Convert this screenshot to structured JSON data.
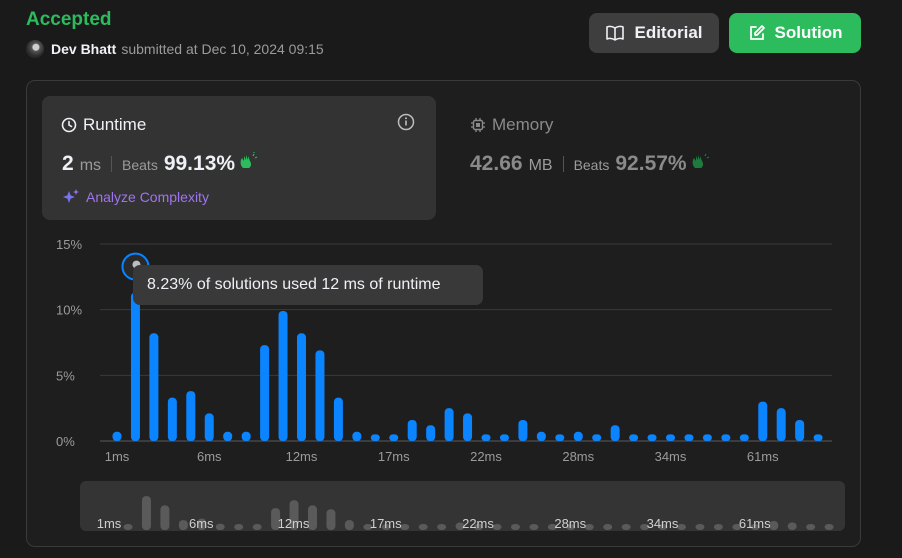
{
  "submission": {
    "status": "Accepted",
    "user": "Dev Bhatt",
    "submitted_text": "submitted at Dec 10, 2024 09:15"
  },
  "buttons": {
    "editorial": "Editorial",
    "solution": "Solution"
  },
  "runtime": {
    "title": "Runtime",
    "value": "2",
    "unit": "ms",
    "beats_label": "Beats",
    "beats_pct": "99.13%",
    "analyze_label": "Analyze Complexity"
  },
  "memory": {
    "title": "Memory",
    "value": "42.66",
    "unit": "MB",
    "beats_label": "Beats",
    "beats_pct": "92.57%"
  },
  "tooltip": "8.23% of solutions used 12 ms of runtime",
  "colors": {
    "accepted": "#2cbb5d",
    "bar": "#0a84ff",
    "analyze": "#a074f0"
  },
  "chart_data": {
    "type": "bar",
    "ylim": [
      0,
      15
    ],
    "y_ticks": [
      "15%",
      "10%",
      "5%",
      "0%"
    ],
    "x_tick_labels": [
      {
        "index": 0,
        "label": "1ms"
      },
      {
        "index": 5,
        "label": "6ms"
      },
      {
        "index": 10,
        "label": "12ms"
      },
      {
        "index": 15,
        "label": "17ms"
      },
      {
        "index": 20,
        "label": "22ms"
      },
      {
        "index": 25,
        "label": "28ms"
      },
      {
        "index": 30,
        "label": "34ms"
      },
      {
        "index": 35,
        "label": "61ms"
      }
    ],
    "values": [
      0.7,
      11.3,
      8.2,
      3.3,
      3.8,
      2.1,
      0.7,
      0.7,
      7.3,
      9.9,
      8.2,
      6.9,
      3.3,
      0.7,
      0.5,
      0.5,
      1.6,
      1.2,
      2.5,
      2.1,
      0.5,
      0.5,
      1.6,
      0.7,
      0.5,
      0.7,
      0.5,
      1.2,
      0.5,
      0.5,
      0.5,
      0.5,
      0.5,
      0.5,
      0.5,
      3.0,
      2.5,
      1.6,
      0.5
    ],
    "highlight_index": 1
  }
}
